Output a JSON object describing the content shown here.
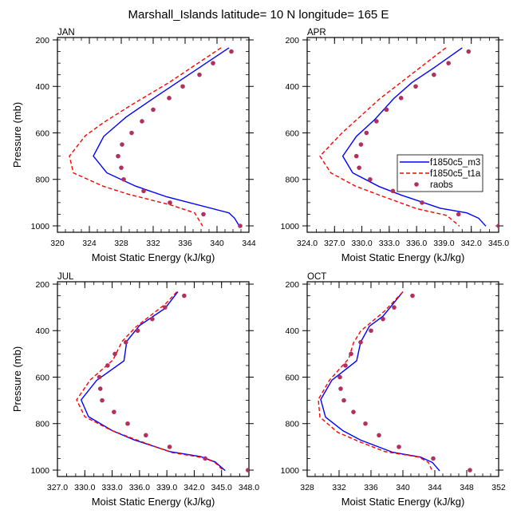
{
  "chart_data": {
    "title": "Marshall_Islands  latitude= 10 N longitude= 165 E",
    "legend": {
      "placement": "right (inside APR panel)",
      "entries": [
        {
          "name": "f1850c5_m3",
          "style": "solid-line",
          "color": "#0000ff"
        },
        {
          "name": "f1850c5_t1a",
          "style": "dashed-line",
          "color": "#ff0000"
        },
        {
          "name": "raobs",
          "style": "marker",
          "color": "#b03060"
        }
      ]
    },
    "panels": [
      {
        "id": "jan",
        "label": "JAN",
        "type": "line",
        "xlabel": "Moist Static Energy (kJ/kg)",
        "ylabel": "Pressure (mb)",
        "xlim": [
          320,
          344
        ],
        "xticks": [
          "320",
          "324",
          "328",
          "332",
          "336",
          "340",
          "344"
        ],
        "xtick_values": [
          320,
          324,
          328,
          332,
          336,
          340,
          344
        ],
        "x_minor_step": 1,
        "ylim": [
          1027.5,
          189.7
        ],
        "yticks": [
          "200",
          "400",
          "600",
          "800",
          "1000"
        ],
        "ytick_values": [
          200,
          400,
          600,
          800,
          1000
        ],
        "y_inverted": true,
        "series": [
          {
            "name": "f1850c5_m3",
            "p": [
              234,
              452,
              532,
              615,
              700,
              772,
              829,
              875,
              944,
              967,
              1001
            ],
            "x": [
              341.5,
              332.0,
              328.6,
              325.8,
              324.5,
              326.2,
              329.8,
              333.7,
              341.5,
              342.2,
              342.8
            ]
          },
          {
            "name": "f1850c5_t1a",
            "p": [
              234,
              383,
              475,
              555,
              612,
              700,
              772,
              829,
              864,
              910,
              944,
              1001
            ],
            "x": [
              340.5,
              334.0,
              329.5,
              325.8,
              323.5,
              321.5,
              322.0,
              325.7,
              328.9,
              334.2,
              337.2,
              338.2
            ]
          },
          {
            "name": "raobs",
            "p": [
              250,
              300,
              350,
              400,
              450,
              500,
              550,
              600,
              650,
              700,
              750,
              800,
              850,
              900,
              950,
              1000
            ],
            "x": [
              341.8,
              339.5,
              337.8,
              335.7,
              334.0,
              332.0,
              330.6,
              329.3,
              328.1,
              327.6,
              328.0,
              328.3,
              330.8,
              334.1,
              338.3,
              342.9
            ]
          }
        ]
      },
      {
        "id": "apr",
        "label": "APR",
        "type": "line",
        "xlabel": "Moist Static Energy (kJ/kg)",
        "ylabel": "",
        "xlim": [
          324.0,
          345.0
        ],
        "xticks": [
          "324.0",
          "327.0",
          "330.0",
          "333.0",
          "336.0",
          "339.0",
          "342.0",
          "345.0"
        ],
        "xtick_values": [
          324,
          327,
          330,
          333,
          336,
          339,
          342,
          345
        ],
        "x_minor_step": 1,
        "ylim": [
          1027.5,
          189.7
        ],
        "yticks": [
          "200",
          "400",
          "600",
          "800",
          "1000"
        ],
        "ytick_values": [
          200,
          400,
          600,
          800,
          1000
        ],
        "y_inverted": true,
        "has_legend": true,
        "series": [
          {
            "name": "f1850c5_m3",
            "p": [
              234,
              320,
              383,
              452,
              543,
              615,
              700,
              772,
              831,
              869,
              924,
              944,
              967,
              1001
            ],
            "x": [
              341.0,
              337.9,
              335.5,
              333.5,
              331.4,
              329.4,
              327.9,
              329.0,
              331.9,
              334.4,
              338.6,
              341.5,
              342.8,
              343.6
            ]
          },
          {
            "name": "f1850c5_t1a",
            "p": [
              234,
              452,
              601,
              700,
              772,
              829,
              869,
              926,
              955,
              1001
            ],
            "x": [
              339.2,
              332.0,
              327.8,
              325.4,
              326.6,
              329.3,
              332.0,
              336.0,
              339.3,
              340.7
            ]
          },
          {
            "name": "raobs",
            "p": [
              250,
              300,
              350,
              400,
              450,
              500,
              550,
              600,
              650,
              700,
              750,
              800,
              850,
              900,
              950,
              1000
            ],
            "x": [
              341.7,
              339.5,
              337.9,
              335.9,
              334.3,
              332.7,
              331.6,
              330.5,
              329.9,
              329.4,
              329.7,
              330.9,
              333.4,
              336.6,
              340.6,
              345.0
            ]
          }
        ]
      },
      {
        "id": "jul",
        "label": "JUL",
        "type": "line",
        "xlabel": "Moist Static Energy (kJ/kg)",
        "ylabel": "Pressure (mb)",
        "xlim": [
          327.0,
          348.0
        ],
        "xticks": [
          "327.0",
          "330.0",
          "333.0",
          "336.0",
          "339.0",
          "342.0",
          "345.0",
          "348.0"
        ],
        "xtick_values": [
          327,
          330,
          333,
          336,
          339,
          342,
          345,
          348
        ],
        "x_minor_step": 1,
        "ylim": [
          1027.5,
          189.7
        ],
        "yticks": [
          "200",
          "400",
          "600",
          "800",
          "1000"
        ],
        "ytick_values": [
          200,
          400,
          600,
          800,
          1000
        ],
        "y_inverted": true,
        "series": [
          {
            "name": "f1850c5_m3",
            "p": [
              233,
              304,
              378,
              446,
              530,
              614,
              698,
              770,
              830,
              870,
              921,
              942,
              965,
              1002
            ],
            "x": [
              340.2,
              338.8,
              336.0,
              334.6,
              334.3,
              331.3,
              329.6,
              330.4,
              333.0,
              335.4,
              339.4,
              342.7,
              344.3,
              345.4
            ]
          },
          {
            "name": "f1850c5_t1a",
            "p": [
              233,
              287,
              384,
              446,
              526,
              612,
              698,
              770,
              827,
              866,
              924,
              946,
              965,
              998
            ],
            "x": [
              340.1,
              338.8,
              335.6,
              334.1,
              333.1,
              330.6,
              329.1,
              330.0,
              332.8,
              335.4,
              339.5,
              342.9,
              344.2,
              345.1
            ]
          },
          {
            "name": "raobs",
            "p": [
              250,
              300,
              350,
              400,
              450,
              500,
              550,
              600,
              650,
              700,
              750,
              800,
              850,
              900,
              950,
              1000
            ],
            "x": [
              340.9,
              338.8,
              337.4,
              335.8,
              334.5,
              333.3,
              332.5,
              331.6,
              331.7,
              331.9,
              333.2,
              334.7,
              336.7,
              339.3,
              343.2,
              347.9
            ]
          }
        ]
      },
      {
        "id": "oct",
        "label": "OCT",
        "type": "line",
        "xlabel": "Moist Static Energy (kJ/kg)",
        "ylabel": "",
        "xlim": [
          328,
          352
        ],
        "xticks": [
          "328",
          "332",
          "336",
          "340",
          "344",
          "348",
          "352"
        ],
        "xtick_values": [
          328,
          332,
          336,
          340,
          344,
          348,
          352
        ],
        "x_minor_step": 1,
        "ylim": [
          1027.5,
          189.7
        ],
        "yticks": [
          "200",
          "400",
          "600",
          "800",
          "1000"
        ],
        "ytick_values": [
          200,
          400,
          600,
          800,
          1000
        ],
        "y_inverted": true,
        "series": [
          {
            "name": "f1850c5_m3",
            "p": [
              233,
              338,
              381,
              450,
              530,
              613,
              696,
              772,
              831,
              871,
              923,
              944,
              967,
              1003
            ],
            "x": [
              340.0,
              337.5,
              335.8,
              334.7,
              334.2,
              331.1,
              329.7,
              330.3,
              332.5,
              334.7,
              338.7,
              342.2,
              343.7,
              344.6
            ]
          },
          {
            "name": "f1850c5_t1a",
            "p": [
              233,
              316,
              402,
              453,
              521,
              613,
              696,
              772,
              837,
              877,
              920,
              944,
              967,
              998
            ],
            "x": [
              340.0,
              337.7,
              334.7,
              333.8,
              333.2,
              330.8,
              329.4,
              329.6,
              331.8,
              334.5,
              337.7,
              342.0,
              343.2,
              343.6
            ]
          },
          {
            "name": "raobs",
            "p": [
              250,
              300,
              350,
              400,
              450,
              500,
              550,
              600,
              650,
              700,
              750,
              800,
              850,
              900,
              950,
              1000
            ],
            "x": [
              341.2,
              338.9,
              337.5,
              336.0,
              334.7,
              333.5,
              332.8,
              332.1,
              332.2,
              332.6,
              333.8,
              335.3,
              337.0,
              339.5,
              343.8,
              348.4
            ]
          }
        ]
      }
    ]
  }
}
